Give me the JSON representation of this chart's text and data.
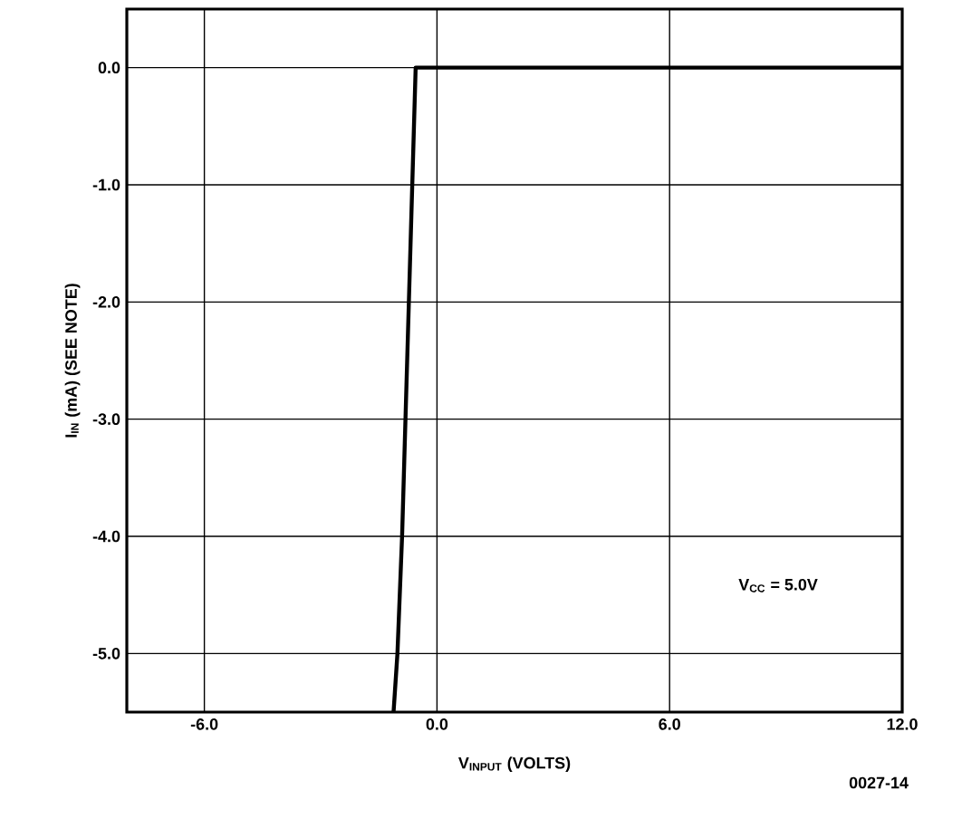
{
  "chart_data": {
    "type": "line",
    "xlabel": "V$_{INPUT}$ (VOLTS)",
    "ylabel": "I$_{IN}$ (mA) (SEE NOTE)",
    "annotations": [
      "V$_{CC}$ = 5.0V",
      "0027-14"
    ],
    "x": [
      -1.12,
      -1.02,
      -0.9,
      -0.55,
      12
    ],
    "series": [
      {
        "color": "#000000",
        "values": [
          -5.5,
          -5.0,
          -4.0,
          0.0,
          0.0
        ]
      }
    ],
    "xlim": [
      -8,
      12
    ],
    "ylim": [
      -5.5,
      0.5
    ],
    "xticks": [
      {
        "value": -6,
        "label": "-6.0"
      },
      {
        "value": 0,
        "label": "0.0"
      },
      {
        "value": 6,
        "label": "6.0"
      },
      {
        "value": 12,
        "label": "12.0"
      }
    ],
    "yticks": [
      {
        "value": 0,
        "label": "0.0"
      },
      {
        "value": -1,
        "label": "-1.0"
      },
      {
        "value": -2,
        "label": "-2.0"
      },
      {
        "value": -3,
        "label": "-3.0"
      },
      {
        "value": -4,
        "label": "-4.0"
      },
      {
        "value": -5,
        "label": "-5.0"
      }
    ],
    "grid": true,
    "marker": "none",
    "line_style": "solid"
  }
}
